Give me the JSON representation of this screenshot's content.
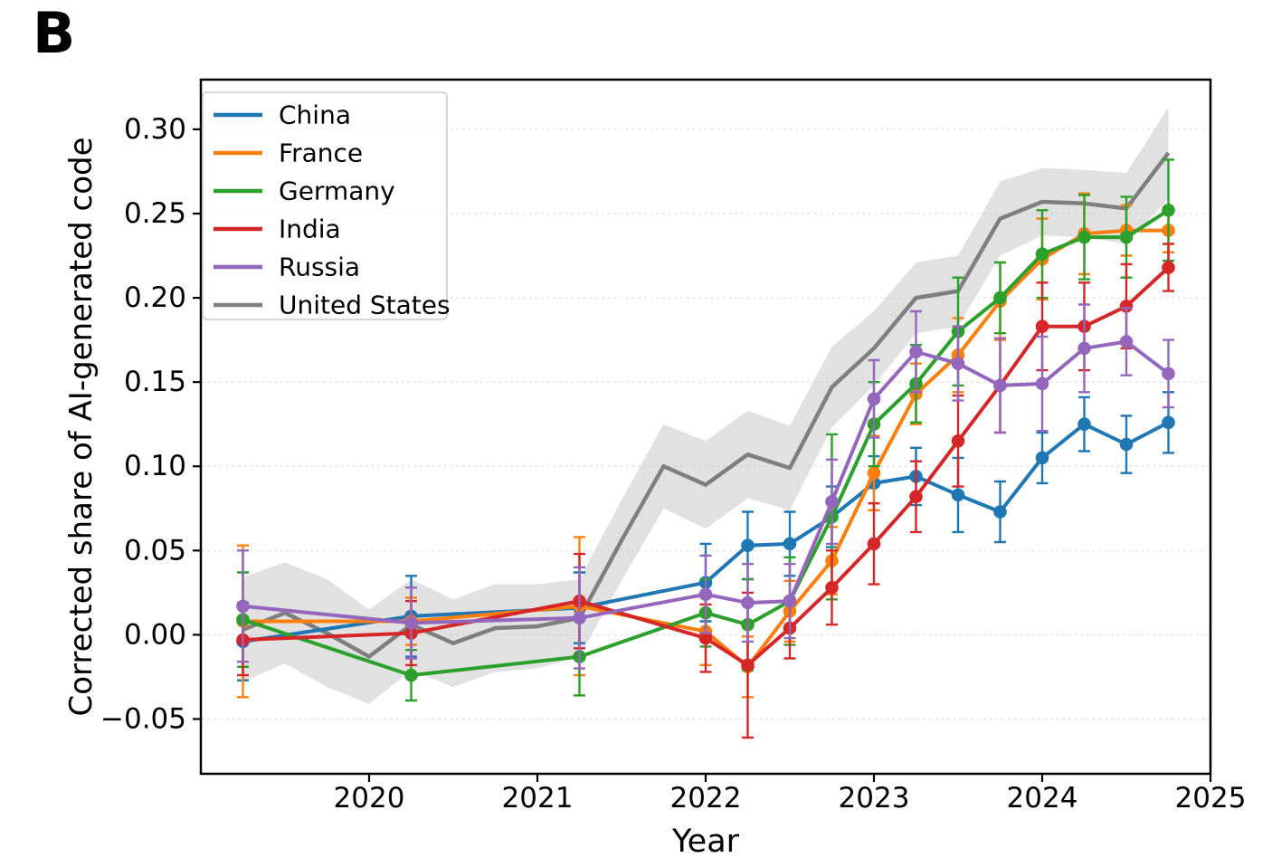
{
  "panel_label": "B",
  "chart_data": {
    "type": "line",
    "title": "",
    "xlabel": "Year",
    "ylabel": "Corrected share of AI-generated code",
    "xlim": [
      2019.0,
      2025.0
    ],
    "ylim": [
      -0.0825,
      0.3295
    ],
    "x_ticks": [
      2020,
      2021,
      2022,
      2023,
      2024,
      2025
    ],
    "x_tick_labels": [
      "2020",
      "2021",
      "2022",
      "2023",
      "2024",
      "2025"
    ],
    "y_ticks": [
      -0.05,
      0.0,
      0.05,
      0.1,
      0.15,
      0.2,
      0.25,
      0.3
    ],
    "y_tick_labels": [
      "−0.05",
      "0.00",
      "0.05",
      "0.10",
      "0.15",
      "0.20",
      "0.25",
      "0.30"
    ],
    "grid": "horizontal-dashed",
    "legend_position": "upper-left",
    "background_color": "#ffffff",
    "grid_color": "#d9d9d9",
    "spine_color": "#000000",
    "series": [
      {
        "name": "China",
        "color": "#1f77b4",
        "markers": true,
        "x": [
          2019.25,
          2020.25,
          2021.25,
          2022.0,
          2022.25,
          2022.5,
          2022.75,
          2023.0,
          2023.25,
          2023.5,
          2023.75,
          2024.0,
          2024.25,
          2024.5,
          2024.75
        ],
        "values": [
          -0.004,
          0.011,
          0.016,
          0.031,
          0.053,
          0.054,
          0.07,
          0.09,
          0.094,
          0.083,
          0.073,
          0.105,
          0.125,
          0.113,
          0.126
        ],
        "err": [
          0.023,
          0.024,
          0.021,
          0.023,
          0.02,
          0.019,
          0.018,
          0.016,
          0.017,
          0.022,
          0.018,
          0.015,
          0.016,
          0.017,
          0.018
        ]
      },
      {
        "name": "France",
        "color": "#ff7f0e",
        "markers": true,
        "x": [
          2019.25,
          2020.25,
          2021.25,
          2022.0,
          2022.25,
          2022.5,
          2022.75,
          2023.0,
          2023.25,
          2023.5,
          2023.75,
          2024.0,
          2024.25,
          2024.5,
          2024.75
        ],
        "values": [
          0.008,
          0.008,
          0.017,
          0.002,
          -0.019,
          0.014,
          0.044,
          0.096,
          0.143,
          0.166,
          0.198,
          0.223,
          0.238,
          0.24,
          0.24
        ],
        "err": [
          0.045,
          0.014,
          0.041,
          0.02,
          0.018,
          0.018,
          0.02,
          0.022,
          0.018,
          0.022,
          0.023,
          0.024,
          0.024,
          0.015,
          0.013
        ]
      },
      {
        "name": "Germany",
        "color": "#2ca02c",
        "markers": true,
        "x": [
          2019.25,
          2020.25,
          2021.25,
          2022.0,
          2022.25,
          2022.5,
          2022.75,
          2023.0,
          2023.25,
          2023.5,
          2023.75,
          2024.0,
          2024.25,
          2024.5,
          2024.75
        ],
        "values": [
          0.009,
          -0.024,
          -0.013,
          0.013,
          0.006,
          0.02,
          0.07,
          0.125,
          0.149,
          0.18,
          0.2,
          0.226,
          0.236,
          0.236,
          0.252
        ],
        "err": [
          0.028,
          0.015,
          0.023,
          0.02,
          0.027,
          0.026,
          0.049,
          0.025,
          0.023,
          0.032,
          0.021,
          0.026,
          0.025,
          0.024,
          0.03
        ]
      },
      {
        "name": "India",
        "color": "#d62728",
        "markers": true,
        "x": [
          2019.25,
          2020.25,
          2021.25,
          2022.0,
          2022.25,
          2022.5,
          2022.75,
          2023.0,
          2023.25,
          2023.5,
          2023.75,
          2024.0,
          2024.25,
          2024.5,
          2024.75
        ],
        "values": [
          -0.003,
          0.001,
          0.02,
          -0.002,
          -0.018,
          0.004,
          0.028,
          0.054,
          0.082,
          0.115,
          0.148,
          0.183,
          0.183,
          0.195,
          0.218
        ],
        "err": [
          0.021,
          0.019,
          0.028,
          0.02,
          0.043,
          0.018,
          0.022,
          0.024,
          0.021,
          0.027,
          0.028,
          0.026,
          0.026,
          0.025,
          0.014
        ]
      },
      {
        "name": "Russia",
        "color": "#9467bd",
        "markers": true,
        "x": [
          2019.25,
          2020.25,
          2021.25,
          2022.0,
          2022.25,
          2022.5,
          2022.75,
          2023.0,
          2023.25,
          2023.5,
          2023.75,
          2024.0,
          2024.25,
          2024.5,
          2024.75
        ],
        "values": [
          0.017,
          0.007,
          0.01,
          0.024,
          0.019,
          0.02,
          0.079,
          0.14,
          0.168,
          0.161,
          0.148,
          0.149,
          0.17,
          0.174,
          0.155
        ],
        "err": [
          0.033,
          0.021,
          0.03,
          0.023,
          0.023,
          0.022,
          0.025,
          0.023,
          0.024,
          0.022,
          0.028,
          0.028,
          0.026,
          0.02,
          0.02
        ]
      },
      {
        "name": "United States",
        "color": "#7f7f7f",
        "markers": false,
        "band_color": "#c8c8c8",
        "band_opacity": 0.55,
        "x": [
          2019.25,
          2019.5,
          2019.75,
          2020.0,
          2020.25,
          2020.5,
          2020.75,
          2021.0,
          2021.25,
          2021.5,
          2021.75,
          2022.0,
          2022.25,
          2022.5,
          2022.75,
          2023.0,
          2023.25,
          2023.5,
          2023.75,
          2024.0,
          2024.25,
          2024.5,
          2024.75
        ],
        "values": [
          0.003,
          0.013,
          0.001,
          -0.013,
          0.006,
          -0.005,
          0.004,
          0.005,
          0.01,
          0.056,
          0.1,
          0.089,
          0.107,
          0.099,
          0.147,
          0.17,
          0.2,
          0.204,
          0.247,
          0.257,
          0.256,
          0.253,
          0.286
        ],
        "band_halfwidth": [
          0.031,
          0.03,
          0.032,
          0.028,
          0.027,
          0.026,
          0.026,
          0.025,
          0.023,
          0.024,
          0.025,
          0.026,
          0.026,
          0.025,
          0.024,
          0.022,
          0.021,
          0.021,
          0.022,
          0.02,
          0.02,
          0.021,
          0.027
        ]
      }
    ]
  }
}
